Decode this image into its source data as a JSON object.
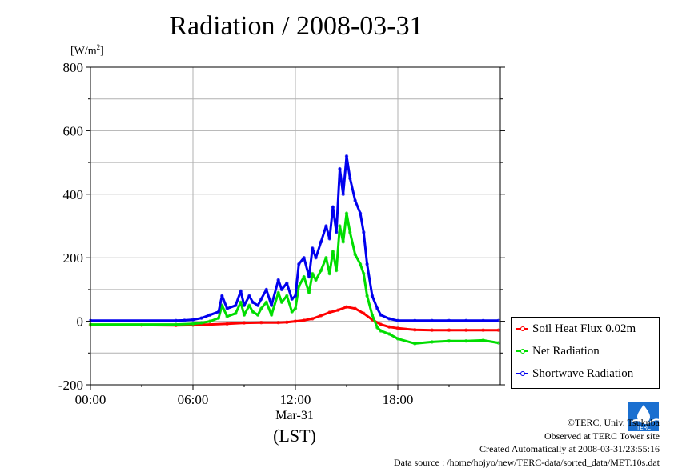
{
  "title": "Radiation / 2008-03-31",
  "unit_label_base": "[W/m",
  "unit_label_sup": "2",
  "unit_label_end": "]",
  "date_label": "Mar-31",
  "time_zone_label": "(LST)",
  "footer": {
    "copyright": "©TERC, Univ. Tsukuba",
    "observed": "Observed at TERC Tower site",
    "created": "Created Automatically at 2008-03-31/23:55:16",
    "source": "Data source : /home/hojyo/new/TERC-data/sorted_data/MET.10s.dat"
  },
  "logo_text": "TERC",
  "chart_data": {
    "type": "line",
    "title": "Radiation / 2008-03-31",
    "ylabel": "[W/m2]",
    "xlabel": "(LST)",
    "xlim": [
      0,
      24
    ],
    "ylim": [
      -200,
      800
    ],
    "x_ticks": [
      0,
      6,
      12,
      18
    ],
    "x_tick_labels": [
      "00:00",
      "06:00",
      "12:00",
      "18:00"
    ],
    "y_ticks": [
      -200,
      0,
      200,
      400,
      600,
      800
    ],
    "y_tick_labels": [
      "-200",
      "0",
      "200",
      "400",
      "600",
      "800"
    ],
    "grid": true,
    "legend_position": "right",
    "series": [
      {
        "name": "Soil Heat Flux 0.02m",
        "color": "#ff0000",
        "x": [
          0,
          3,
          5,
          6,
          7,
          8,
          9,
          10,
          11,
          11.5,
          12,
          12.5,
          13,
          13.5,
          14,
          14.5,
          15,
          15.5,
          16,
          16.5,
          17,
          17.5,
          18,
          19,
          20,
          21,
          22,
          23,
          23.9
        ],
        "y": [
          -12,
          -12,
          -13,
          -12,
          -10,
          -8,
          -5,
          -4,
          -4,
          -3,
          0,
          3,
          8,
          18,
          28,
          35,
          45,
          40,
          25,
          5,
          -10,
          -18,
          -22,
          -27,
          -28,
          -28,
          -28,
          -28,
          -28
        ]
      },
      {
        "name": "Net Radiation",
        "color": "#00dd00",
        "x": [
          0,
          5,
          6,
          6.5,
          7,
          7.5,
          7.7,
          8,
          8.5,
          8.8,
          9,
          9.3,
          9.5,
          9.8,
          10,
          10.3,
          10.6,
          11,
          11.2,
          11.5,
          11.8,
          12,
          12.2,
          12.5,
          12.8,
          13,
          13.2,
          13.5,
          13.8,
          14,
          14.2,
          14.4,
          14.6,
          14.8,
          15,
          15.2,
          15.5,
          15.8,
          16,
          16.2,
          16.5,
          16.8,
          17,
          17.5,
          18,
          19,
          20,
          21,
          22,
          23,
          23.9
        ],
        "y": [
          -10,
          -10,
          -8,
          -5,
          0,
          10,
          50,
          15,
          25,
          60,
          20,
          50,
          30,
          20,
          40,
          60,
          20,
          90,
          60,
          80,
          30,
          40,
          110,
          140,
          90,
          150,
          130,
          160,
          200,
          150,
          220,
          160,
          300,
          250,
          340,
          280,
          210,
          180,
          150,
          80,
          20,
          -20,
          -30,
          -40,
          -55,
          -70,
          -65,
          -62,
          -62,
          -60,
          -68
        ]
      },
      {
        "name": "Shortwave Radiation",
        "color": "#0000ee",
        "x": [
          0,
          5,
          5.5,
          6,
          6.5,
          7,
          7.5,
          7.7,
          8,
          8.5,
          8.8,
          9,
          9.3,
          9.5,
          9.8,
          10,
          10.3,
          10.6,
          11,
          11.2,
          11.5,
          11.8,
          12,
          12.2,
          12.5,
          12.8,
          13,
          13.2,
          13.5,
          13.8,
          14,
          14.2,
          14.4,
          14.6,
          14.8,
          15,
          15.2,
          15.5,
          15.8,
          16,
          16.2,
          16.5,
          16.8,
          17,
          17.5,
          18,
          19,
          20,
          21,
          22,
          23,
          23.9
        ],
        "y": [
          2,
          2,
          3,
          5,
          10,
          20,
          30,
          80,
          40,
          50,
          95,
          50,
          80,
          60,
          50,
          70,
          100,
          50,
          130,
          100,
          120,
          70,
          80,
          180,
          200,
          140,
          230,
          200,
          250,
          300,
          260,
          360,
          280,
          480,
          400,
          520,
          450,
          380,
          340,
          280,
          180,
          80,
          40,
          20,
          8,
          2,
          2,
          2,
          2,
          2,
          2,
          2
        ]
      }
    ]
  }
}
